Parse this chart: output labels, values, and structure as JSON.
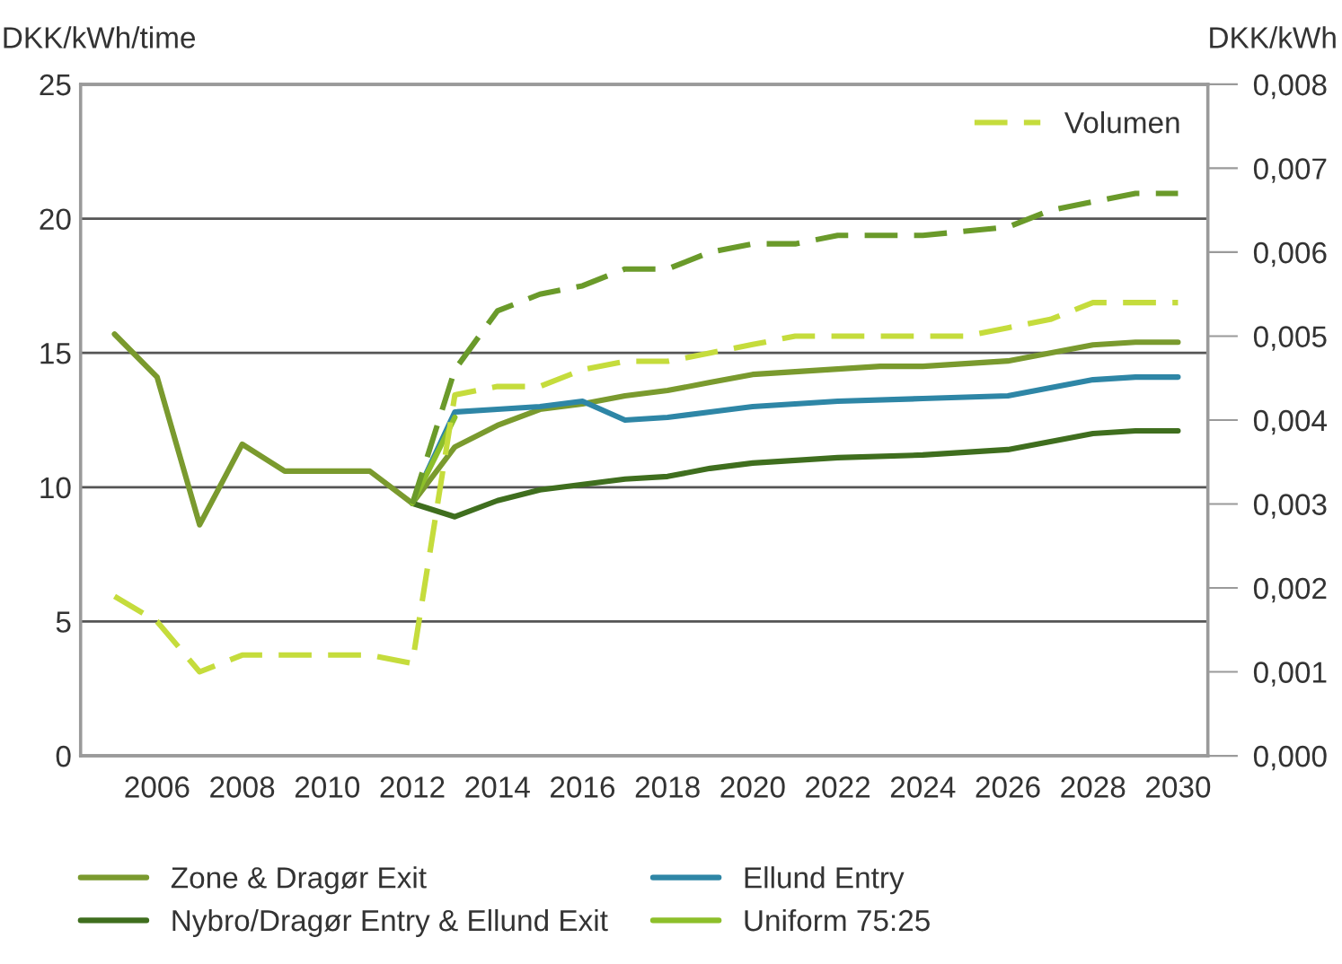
{
  "chart_data": {
    "type": "line",
    "ylabel": "DKK/kWh/time",
    "y2label": "DKK/kWh",
    "xlim": [
      2004.2,
      2030.7
    ],
    "xticks": [
      2006,
      2008,
      2010,
      2012,
      2014,
      2016,
      2018,
      2020,
      2022,
      2024,
      2026,
      2028,
      2030
    ],
    "ylim": [
      0,
      25
    ],
    "yticks": [
      0,
      5,
      10,
      15,
      20,
      25
    ],
    "y2lim": [
      0,
      0.008
    ],
    "y2ticks": [
      {
        "value": 0,
        "label": "0,000"
      },
      {
        "value": 0.001,
        "label": "0,001"
      },
      {
        "value": 0.002,
        "label": "0,002"
      },
      {
        "value": 0.003,
        "label": "0,003"
      },
      {
        "value": 0.004,
        "label": "0,004"
      },
      {
        "value": 0.005,
        "label": "0,005"
      },
      {
        "value": 0.006,
        "label": "0,006"
      },
      {
        "value": 0.007,
        "label": "0,007"
      },
      {
        "value": 0.008,
        "label": "0,008"
      }
    ],
    "grid": "y",
    "legend": "bottom",
    "series": [
      {
        "name": "Zone & Dragør Exit",
        "color": "#7a9a2e",
        "x": [
          2005,
          2006,
          2007,
          2008,
          2009,
          2010,
          2011,
          2012,
          2013,
          2014,
          2015,
          2016,
          2017,
          2018,
          2019,
          2020,
          2021,
          2022,
          2023,
          2024,
          2025,
          2026,
          2027,
          2028,
          2029,
          2030
        ],
        "values": [
          15.7,
          14.1,
          8.6,
          11.6,
          10.6,
          10.6,
          10.6,
          9.4,
          11.5,
          12.3,
          12.9,
          13.1,
          13.4,
          13.6,
          13.9,
          14.2,
          14.3,
          14.4,
          14.5,
          14.5,
          14.6,
          14.7,
          15.0,
          15.3,
          15.4,
          15.4
        ]
      },
      {
        "name": "Ellund Entry",
        "color": "#2e86a6",
        "x": [
          2012,
          2013,
          2014,
          2015,
          2016,
          2017,
          2018,
          2019,
          2020,
          2022,
          2024,
          2026,
          2027,
          2028,
          2029,
          2030
        ],
        "values": [
          9.4,
          12.8,
          12.9,
          13.0,
          13.2,
          12.5,
          12.6,
          12.8,
          13.0,
          13.2,
          13.3,
          13.4,
          13.7,
          14.0,
          14.1,
          14.1
        ]
      },
      {
        "name": "Nybro/Dragør Entry & Ellund Exit",
        "color": "#3f6e1e",
        "x": [
          2012,
          2013,
          2014,
          2015,
          2016,
          2017,
          2018,
          2019,
          2020,
          2022,
          2024,
          2026,
          2027,
          2028,
          2029,
          2030
        ],
        "values": [
          9.4,
          8.9,
          9.5,
          9.9,
          10.1,
          10.3,
          10.4,
          10.7,
          10.9,
          11.1,
          11.2,
          11.4,
          11.7,
          12.0,
          12.1,
          12.1
        ]
      },
      {
        "name": "Uniform 75:25",
        "color": "#8dbf2a",
        "x": [
          2012,
          2013
        ],
        "values": [
          9.4,
          12.6
        ]
      },
      {
        "name": "Volumen",
        "color": "#c5dc3c",
        "axis": "y2",
        "line_style": "dashed",
        "x": [
          2005,
          2006,
          2007,
          2008,
          2009,
          2010,
          2011,
          2012,
          2013,
          2014,
          2015,
          2016,
          2017,
          2018,
          2019,
          2020,
          2021,
          2022,
          2023,
          2024,
          2025,
          2026,
          2027,
          2028,
          2029,
          2030
        ],
        "values": [
          0.0019,
          0.0016,
          0.001,
          0.0012,
          0.0012,
          0.0012,
          0.0012,
          0.0011,
          0.0043,
          0.0044,
          0.0044,
          0.0046,
          0.0047,
          0.0047,
          0.0048,
          0.0049,
          0.005,
          0.005,
          0.005,
          0.005,
          0.005,
          0.0051,
          0.0052,
          0.0054,
          0.0054,
          0.0054
        ]
      },
      {
        "color": "#6a9a2a",
        "axis": "y2",
        "line_style": "dashed",
        "x": [
          2012,
          2013,
          2014,
          2015,
          2016,
          2017,
          2018,
          2019,
          2020,
          2021,
          2022,
          2024,
          2026,
          2027,
          2028,
          2029,
          2030
        ],
        "values": [
          0.003,
          0.0046,
          0.0053,
          0.0055,
          0.0056,
          0.0058,
          0.0058,
          0.006,
          0.0061,
          0.0061,
          0.0062,
          0.0062,
          0.0063,
          0.0065,
          0.0066,
          0.0067,
          0.0067
        ]
      }
    ]
  }
}
